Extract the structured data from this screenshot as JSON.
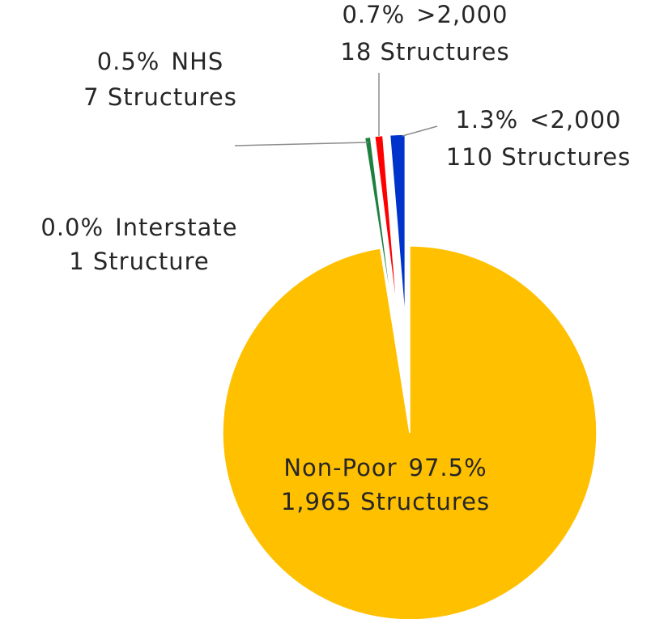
{
  "chart_data": {
    "type": "pie",
    "categories": [
      "Non-Poor",
      "Interstate",
      "NHS",
      ">2,000",
      "<2,000"
    ],
    "values": [
      97.5,
      0.0,
      0.5,
      0.7,
      1.3
    ],
    "value_labels": [
      "97.5%",
      "0.0%",
      "0.5%",
      "0.7%",
      "1.3%"
    ],
    "counts": [
      1965,
      1,
      7,
      18,
      110
    ],
    "count_labels": [
      "1,965 Structures",
      "1 Structure",
      "7 Structures",
      "18 Structures",
      "110 Structures"
    ],
    "colors": [
      "#FFC000",
      "#BFBFBF",
      "#1E7F3E",
      "#FF0000",
      "#0033CC"
    ]
  }
}
